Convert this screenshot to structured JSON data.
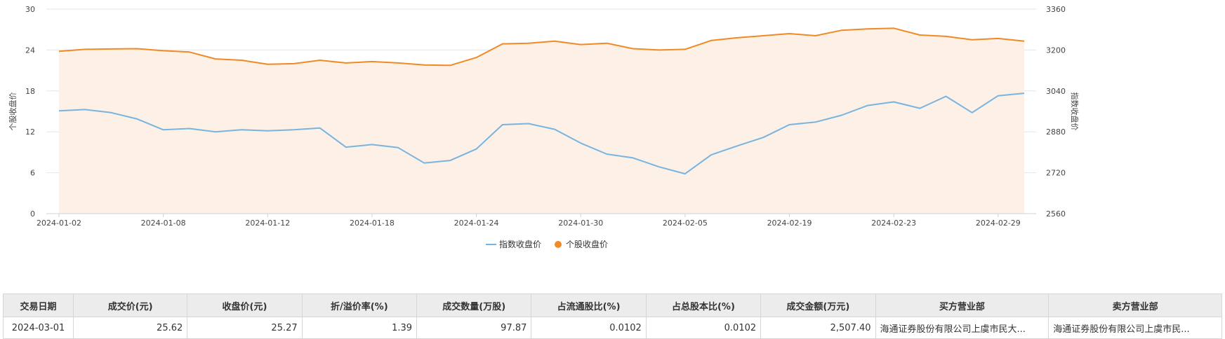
{
  "chart_data": {
    "type": "line",
    "y_left": {
      "label": "个股收盘价",
      "min": 0,
      "max": 30,
      "ticks": [
        "0",
        "6",
        "12",
        "18",
        "24",
        "30"
      ]
    },
    "y_right": {
      "label": "指数收盘价",
      "min": 2560,
      "max": 3360,
      "ticks": [
        "2560",
        "2720",
        "2880",
        "3040",
        "3200",
        "3360"
      ]
    },
    "x": [
      "2024-01-02",
      "2024-01-03",
      "2024-01-04",
      "2024-01-05",
      "2024-01-08",
      "2024-01-09",
      "2024-01-10",
      "2024-01-11",
      "2024-01-12",
      "2024-01-15",
      "2024-01-16",
      "2024-01-17",
      "2024-01-18",
      "2024-01-19",
      "2024-01-22",
      "2024-01-23",
      "2024-01-24",
      "2024-01-25",
      "2024-01-26",
      "2024-01-29",
      "2024-01-30",
      "2024-01-31",
      "2024-02-01",
      "2024-02-02",
      "2024-02-05",
      "2024-02-06",
      "2024-02-07",
      "2024-02-08",
      "2024-02-19",
      "2024-02-20",
      "2024-02-21",
      "2024-02-22",
      "2024-02-23",
      "2024-02-26",
      "2024-02-27",
      "2024-02-28",
      "2024-02-29",
      "2024-03-01"
    ],
    "x_tick_labels": [
      "2024-01-02",
      "2024-01-08",
      "2024-01-12",
      "2024-01-18",
      "2024-01-24",
      "2024-01-30",
      "2024-02-05",
      "2024-02-19",
      "2024-02-23",
      "2024-02-29"
    ],
    "series": [
      {
        "name": "指数收盘价",
        "axis": "right",
        "color": "#78b4e0",
        "values": [
          2962,
          2967,
          2955,
          2930,
          2888,
          2893,
          2880,
          2888,
          2884,
          2888,
          2895,
          2820,
          2830,
          2818,
          2758,
          2768,
          2813,
          2908,
          2912,
          2890,
          2836,
          2793,
          2778,
          2743,
          2716,
          2790,
          2825,
          2858,
          2908,
          2918,
          2945,
          2983,
          2997,
          2972,
          3019,
          2955,
          3021,
          3031
        ]
      },
      {
        "name": "个股收盘价",
        "axis": "left",
        "color": "#f08a24",
        "values": [
          23.8,
          24.1,
          24.15,
          24.2,
          23.9,
          23.7,
          22.7,
          22.5,
          21.9,
          22.0,
          22.5,
          22.1,
          22.3,
          22.1,
          21.8,
          21.75,
          22.9,
          24.9,
          25.0,
          25.3,
          24.8,
          25.0,
          24.2,
          24.0,
          24.1,
          25.4,
          25.8,
          26.1,
          26.4,
          26.1,
          26.9,
          27.1,
          27.2,
          26.2,
          26.0,
          25.5,
          25.7,
          25.3
        ]
      }
    ],
    "legend": {
      "placement": "bottom",
      "items": [
        {
          "label": "指数收盘价",
          "color": "#78b4e0"
        },
        {
          "label": "个股收盘价",
          "color": "#f08a24"
        }
      ]
    },
    "area_fill": "#fdf0e6",
    "grid": true
  },
  "table": {
    "headers": [
      "交易日期",
      "成交价(元)",
      "收盘价(元)",
      "折/溢价率(%)",
      "成交数量(万股)",
      "占流通股比(%)",
      "占总股本比(%)",
      "成交金额(万元)",
      "买方营业部",
      "卖方营业部"
    ],
    "rows": [
      [
        "2024-03-01",
        "25.62",
        "25.27",
        "1.39",
        "97.87",
        "0.0102",
        "0.0102",
        "2,507.40",
        "海通证券股份有限公司上虞市民大...",
        "海通证券股份有限公司上虞市民..."
      ]
    ]
  }
}
